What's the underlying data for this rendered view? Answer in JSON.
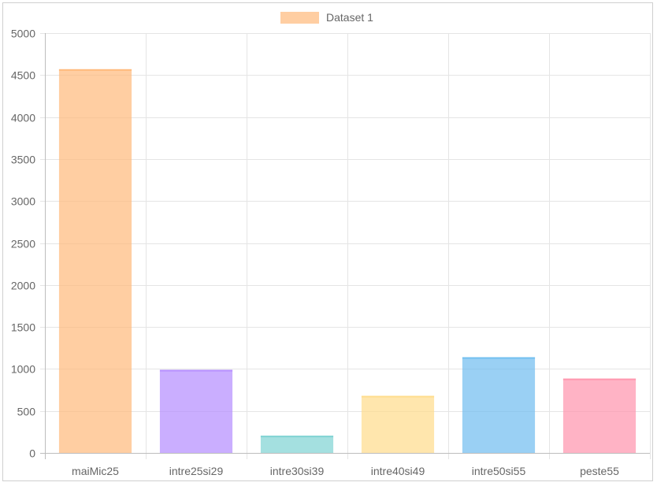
{
  "chart_data": {
    "type": "bar",
    "categories": [
      "maiMic25",
      "intre25si29",
      "intre30si39",
      "intre40si49",
      "intre50si55",
      "peste55"
    ],
    "series": [
      {
        "name": "Dataset 1",
        "values": [
          4570,
          990,
          205,
          680,
          1140,
          885
        ]
      }
    ],
    "bar_colors": [
      "#ffb97a",
      "#b48cff",
      "#7ed3d3",
      "#ffdc8a",
      "#6fbcf0",
      "#ff93ac"
    ],
    "bar_opacity": 0.7,
    "ylim": [
      0,
      5000
    ],
    "y_ticks": [
      "0",
      "500",
      "1000",
      "1500",
      "2000",
      "2500",
      "3000",
      "3500",
      "4000",
      "4500",
      "5000"
    ],
    "legend": {
      "position": "top",
      "swatch_color": "#ffb97a"
    },
    "grid": true,
    "title": "",
    "xlabel": "",
    "ylabel": ""
  }
}
